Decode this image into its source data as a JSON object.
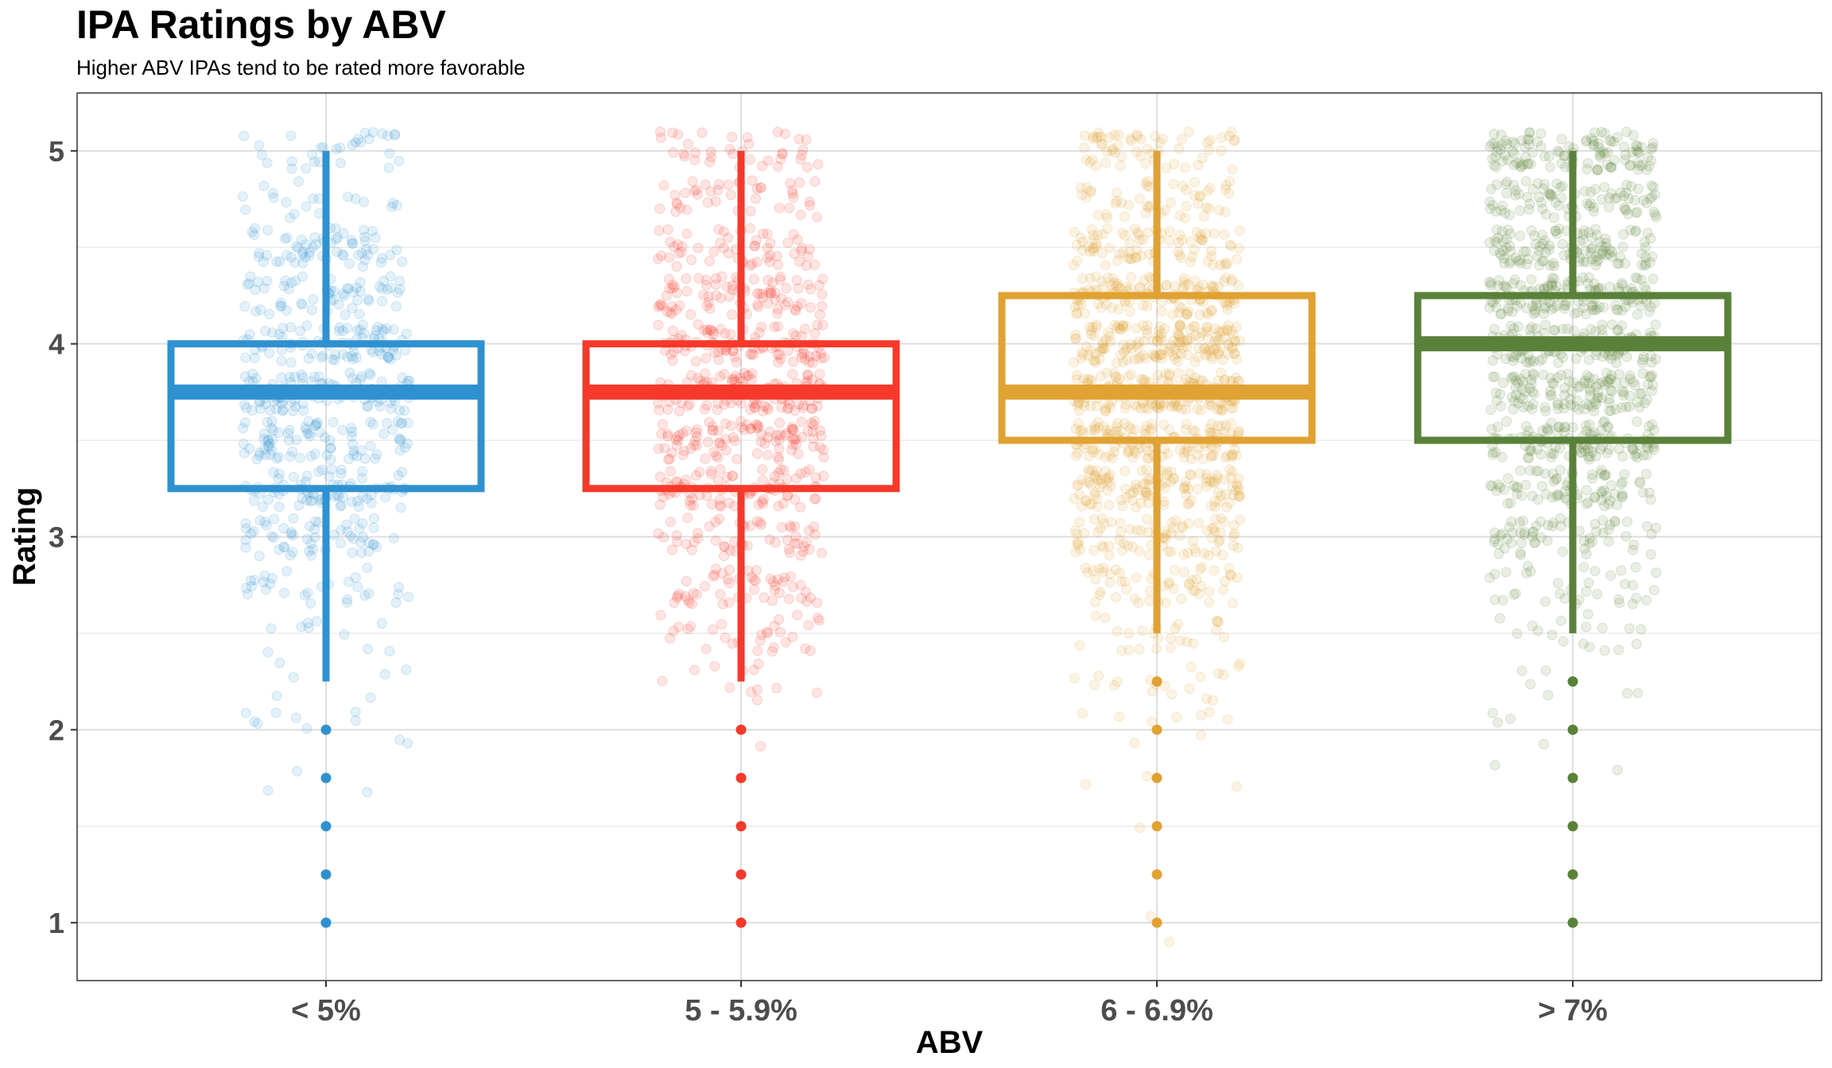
{
  "chart_data": {
    "type": "box",
    "title": "IPA Ratings by ABV",
    "subtitle": "Higher ABV IPAs tend to be rated more favorable",
    "xlabel": "ABV",
    "ylabel": "Rating",
    "ylim": [
      0.7,
      5.3
    ],
    "y_ticks": [
      1,
      2,
      3,
      4,
      5
    ],
    "y_tick_labels": [
      "1",
      "2",
      "3",
      "4",
      "5"
    ],
    "grid": true,
    "legend": "none",
    "overlay": "jittered points (alpha)",
    "categories": [
      "< 5%",
      "5 - 5.9%",
      "6 - 6.9%",
      "> 7%"
    ],
    "series": [
      {
        "category": "< 5%",
        "color": "#2f91d0",
        "q1": 3.25,
        "median": 3.75,
        "q3": 4.0,
        "whisker_low": 2.25,
        "whisker_high": 5.0,
        "outliers": [
          2.0,
          1.75,
          1.5,
          1.25,
          1.0
        ],
        "point_density": 0.45
      },
      {
        "category": "5 - 5.9%",
        "color": "#f6392a",
        "q1": 3.25,
        "median": 3.75,
        "q3": 4.0,
        "whisker_low": 2.25,
        "whisker_high": 5.0,
        "outliers": [
          2.0,
          1.75,
          1.5,
          1.25,
          1.0
        ],
        "point_density": 0.6
      },
      {
        "category": "6 - 6.9%",
        "color": "#e0a232",
        "q1": 3.5,
        "median": 3.75,
        "q3": 4.25,
        "whisker_low": 2.5,
        "whisker_high": 5.0,
        "outliers": [
          2.25,
          2.0,
          1.75,
          1.5,
          1.25,
          1.0
        ],
        "point_density": 1.0
      },
      {
        "category": "> 7%",
        "color": "#5a8139",
        "q1": 3.5,
        "median": 4.0,
        "q3": 4.25,
        "whisker_low": 2.5,
        "whisker_high": 5.0,
        "outliers": [
          2.25,
          2.0,
          1.75,
          1.5,
          1.25,
          1.0
        ],
        "point_density": 0.9
      }
    ]
  }
}
